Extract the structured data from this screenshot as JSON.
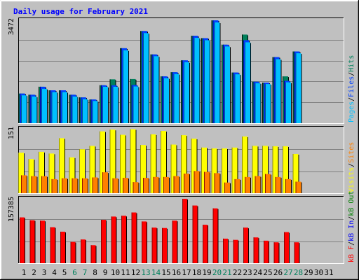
{
  "colors": {
    "background": "#c0c0c0",
    "pages": "#00c0ff",
    "files": "#0040ff",
    "hits": "#00805c",
    "visits": "#ffff00",
    "sites": "#ff8000",
    "kbytes": "#ff0000",
    "kb_in": "#0000ff",
    "kb_out": "#008000",
    "title": "#0000ff",
    "weekend": "#00805c",
    "weekday": "#000000"
  },
  "chart_data": {
    "type": "bar",
    "title": "Daily usage for February 2021",
    "days": [
      "1",
      "2",
      "3",
      "4",
      "5",
      "6",
      "7",
      "8",
      "9",
      "10",
      "11",
      "12",
      "13",
      "14",
      "15",
      "16",
      "17",
      "18",
      "19",
      "20",
      "21",
      "22",
      "23",
      "24",
      "25",
      "26",
      "27",
      "28",
      "29",
      "30",
      "31"
    ],
    "weekend_days": [
      "6",
      "7",
      "13",
      "14",
      "20",
      "21",
      "27",
      "28"
    ],
    "panels": [
      {
        "name": "hits",
        "ylabel_max": "3472",
        "legend": [
          {
            "text": "Pages",
            "color": "#00c0ff"
          },
          {
            "text": "/",
            "color": "#000000"
          },
          {
            "text": "Files",
            "color": "#0040ff"
          },
          {
            "text": "/",
            "color": "#000000"
          },
          {
            "text": "Hits",
            "color": "#00805c"
          }
        ],
        "ymax": 3472,
        "series": [
          {
            "name": "Hits",
            "values": [
              1000,
              960,
              1230,
              1110,
              1110,
              960,
              870,
              800,
              1280,
              1480,
              2530,
              1490,
              3110,
              2320,
              1580,
              1720,
              2120,
              2950,
              2870,
              3470,
              2650,
              1710,
              2990,
              1400,
              1370,
              2230,
              1580,
              2420,
              null,
              null,
              null
            ]
          },
          {
            "name": "Files",
            "values": [
              1000,
              960,
              1230,
              1110,
              1110,
              960,
              870,
              800,
              1280,
              1280,
              2530,
              1290,
              3110,
              2320,
              1580,
              1720,
              2120,
              2950,
              2870,
              3470,
              2650,
              1710,
              2800,
              1400,
              1370,
              2230,
              1430,
              2420,
              null,
              null,
              null
            ]
          },
          {
            "name": "Pages",
            "values": [
              940,
              900,
              1160,
              1050,
              1050,
              900,
              810,
              750,
              1230,
              1230,
              2460,
              1240,
              3040,
              2260,
              1520,
              1660,
              2060,
              2880,
              2800,
              3400,
              2590,
              1650,
              2730,
              1350,
              1320,
              2160,
              1380,
              2360,
              null,
              null,
              null
            ]
          }
        ]
      },
      {
        "name": "visits",
        "ylabel_max": "151",
        "legend": [
          {
            "text": "Visits",
            "color": "#ffff00"
          },
          {
            "text": "/",
            "color": "#000000"
          },
          {
            "text": "Sites",
            "color": "#ff8000"
          }
        ],
        "ymax": 151,
        "series": [
          {
            "name": "Visits",
            "values": [
              95,
              80,
              97,
              93,
              129,
              84,
              103,
              111,
              145,
              149,
              137,
              150,
              113,
              138,
              146,
              114,
              136,
              128,
              107,
              105,
              105,
              107,
              133,
              111,
              111,
              110,
              110,
              92,
              null,
              null,
              null
            ]
          },
          {
            "name": "Sites",
            "values": [
              42,
              40,
              40,
              33,
              35,
              35,
              35,
              37,
              49,
              35,
              36,
              26,
              36,
              38,
              38,
              40,
              46,
              52,
              50,
              47,
              25,
              33,
              38,
              40,
              45,
              38,
              33,
              27,
              null,
              null,
              null
            ]
          }
        ]
      },
      {
        "name": "kbytes",
        "ylabel_max": "157385",
        "legend": [
          {
            "text": "kB F",
            "color": "#ff0000"
          },
          {
            "text": "/",
            "color": "#000000"
          },
          {
            "text": "kB In",
            "color": "#0000ff"
          },
          {
            "text": "/",
            "color": "#000000"
          },
          {
            "text": "kB Out",
            "color": "#008000"
          }
        ],
        "ymax": 157385,
        "series": [
          {
            "name": "kB F",
            "values": [
              112000,
              105000,
              104000,
              88000,
              77000,
              52000,
              58000,
              44000,
              106000,
              114000,
              116000,
              124000,
              102000,
              87000,
              86000,
              104000,
              157385,
              141000,
              94000,
              134000,
              60000,
              57000,
              87000,
              63000,
              55000,
              51000,
              76000,
              51000,
              null,
              null,
              null
            ]
          }
        ]
      }
    ]
  }
}
